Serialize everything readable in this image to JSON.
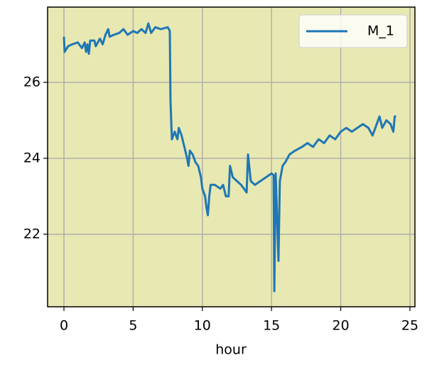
{
  "chart_data": {
    "type": "line",
    "x_label": "hour",
    "xlim": [
      -1.18,
      25.36
    ],
    "ylim": [
      20.09,
      27.98
    ],
    "xticks": [
      0,
      5,
      10,
      15,
      20,
      25
    ],
    "yticks": [
      22,
      24,
      26
    ],
    "grid": true,
    "legend": "upper right",
    "background": "#e8e8b2",
    "series": [
      {
        "name": "M_1",
        "color": "#1f77b4",
        "x": [
          0,
          0.05,
          0.3,
          0.6,
          1.0,
          1.3,
          1.5,
          1.6,
          1.7,
          1.8,
          1.9,
          2.2,
          2.3,
          2.6,
          2.8,
          3.0,
          3.2,
          3.3,
          3.6,
          4.0,
          4.3,
          4.6,
          5.0,
          5.3,
          5.6,
          5.9,
          6.1,
          6.3,
          6.6,
          7.0,
          7.5,
          7.65,
          7.7,
          7.8,
          8.0,
          8.2,
          8.3,
          8.5,
          8.7,
          8.9,
          9.0,
          9.1,
          9.3,
          9.5,
          9.7,
          9.9,
          10.0,
          10.2,
          10.3,
          10.4,
          10.5,
          10.6,
          10.9,
          11.3,
          11.5,
          11.7,
          11.9,
          12.0,
          12.2,
          12.5,
          12.8,
          13.0,
          13.2,
          13.3,
          13.5,
          13.8,
          15.0,
          15.15,
          15.2,
          15.3,
          15.5,
          15.6,
          15.8,
          16.0,
          16.3,
          16.7,
          17.2,
          17.6,
          18.0,
          18.4,
          18.8,
          19.2,
          19.6,
          20.0,
          20.4,
          20.8,
          21.2,
          21.6,
          22.0,
          22.3,
          22.6,
          22.8,
          23.0,
          23.3,
          23.6,
          23.8,
          23.9,
          24.0
        ],
        "values": [
          27.2,
          26.8,
          26.95,
          27.0,
          27.05,
          26.9,
          27.05,
          26.8,
          27.0,
          26.75,
          27.1,
          27.1,
          26.95,
          27.15,
          27.0,
          27.25,
          27.4,
          27.2,
          27.25,
          27.3,
          27.4,
          27.25,
          27.35,
          27.3,
          27.4,
          27.3,
          27.55,
          27.3,
          27.45,
          27.4,
          27.45,
          27.35,
          25.5,
          24.5,
          24.7,
          24.5,
          24.8,
          24.6,
          24.3,
          24.0,
          23.8,
          24.2,
          24.1,
          23.9,
          23.8,
          23.5,
          23.2,
          23.0,
          22.7,
          22.5,
          23.0,
          23.3,
          23.3,
          23.2,
          23.3,
          23.0,
          23.0,
          23.8,
          23.5,
          23.4,
          23.3,
          23.2,
          23.1,
          24.1,
          23.4,
          23.3,
          23.6,
          23.55,
          20.5,
          23.6,
          21.3,
          23.4,
          23.8,
          23.9,
          24.1,
          24.2,
          24.3,
          24.4,
          24.3,
          24.5,
          24.4,
          24.6,
          24.5,
          24.7,
          24.8,
          24.7,
          24.8,
          24.9,
          24.8,
          24.6,
          24.9,
          25.1,
          24.8,
          25.0,
          24.9,
          24.7,
          25.1,
          25.1
        ]
      }
    ]
  }
}
